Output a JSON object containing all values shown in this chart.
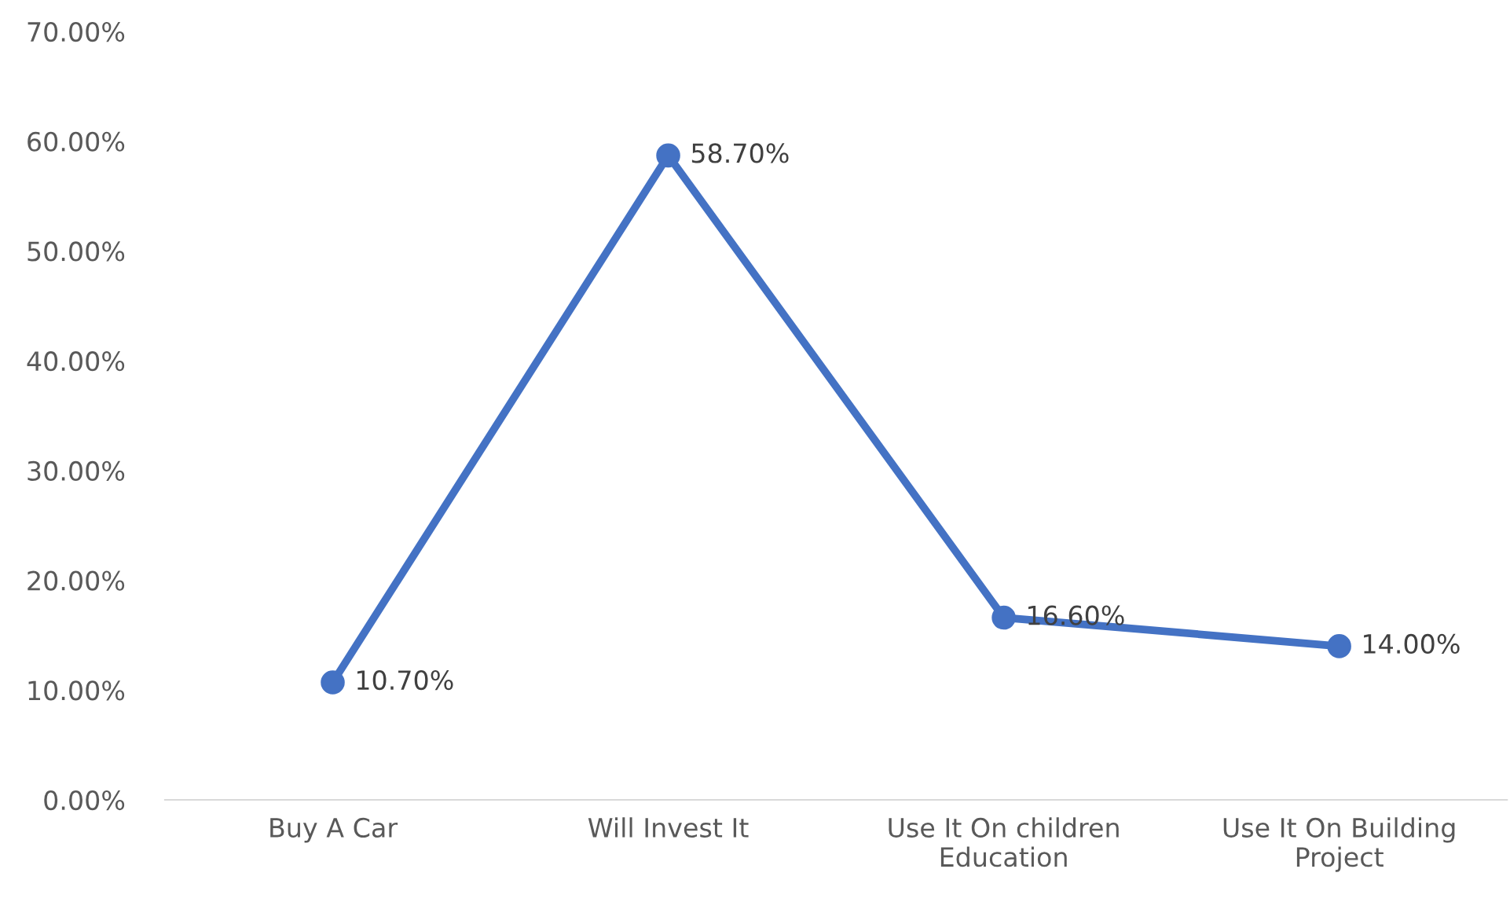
{
  "chart_data": {
    "type": "line",
    "categories": [
      "Buy A Car",
      "Will Invest It",
      "Use It On children\nEducation",
      "Use It On Building\nProject"
    ],
    "series": [
      {
        "color": "#4472c4",
        "values": [
          10.7,
          58.7,
          16.6,
          14.0
        ],
        "value_labels": [
          "10.70%",
          "58.70%",
          "16.60%",
          "14.00%"
        ]
      }
    ],
    "ylim": [
      0,
      70
    ],
    "yticks": [
      {
        "value": 0,
        "label": "0.00%"
      },
      {
        "value": 10,
        "label": "10.00%"
      },
      {
        "value": 20,
        "label": "20.00%"
      },
      {
        "value": 30,
        "label": "30.00%"
      },
      {
        "value": 40,
        "label": "40.00%"
      },
      {
        "value": 50,
        "label": "50.00%"
      },
      {
        "value": 60,
        "label": "60.00%"
      },
      {
        "value": 70,
        "label": "70.00%"
      }
    ],
    "marker": "circle",
    "line_style": "solid"
  }
}
